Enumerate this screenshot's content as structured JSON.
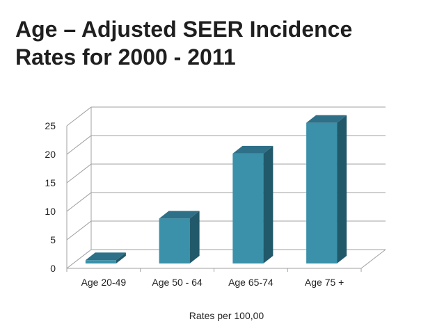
{
  "slide": {
    "title_line1": "Age – Adjusted SEER Incidence",
    "title_line2": "Rates for 2000 - 2011"
  },
  "colors": {
    "bar_front": "#3a91a9",
    "bar_side": "#22596a",
    "bar_top": "#2e7088",
    "grid": "#a0a0a0"
  },
  "chart_data": {
    "type": "bar",
    "style": "3d-columns",
    "categories": [
      "Age 20-49",
      "Age 50 - 64",
      "Age 65-74",
      "Age 75 +"
    ],
    "values": [
      0.7,
      8.0,
      19.4,
      24.8
    ],
    "xlabel": "Rates per 100,00",
    "ylabel": "",
    "ylim": [
      0,
      25
    ],
    "yticks": [
      "0",
      "5",
      "10",
      "15",
      "20",
      "25"
    ],
    "grid": true,
    "legend": "none"
  }
}
